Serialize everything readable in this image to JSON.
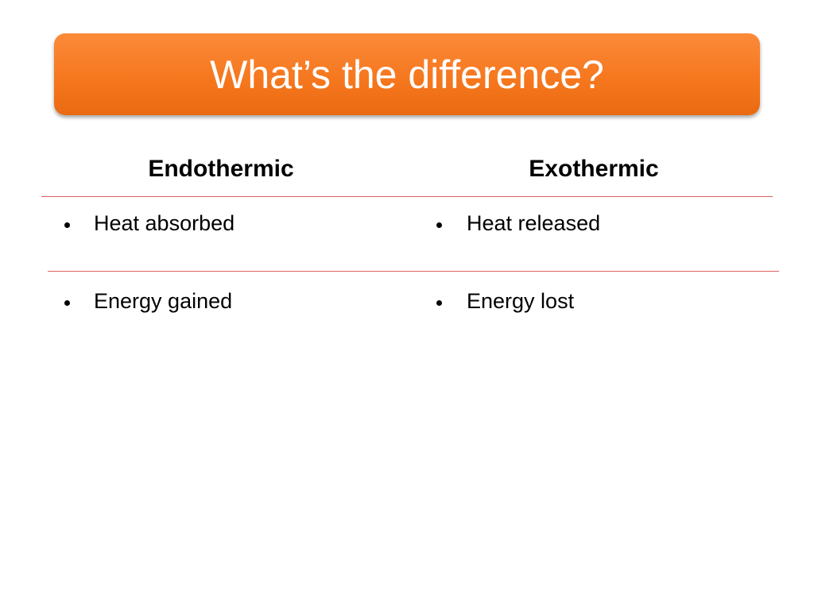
{
  "header": {
    "title": "What’s the difference?"
  },
  "table": {
    "columns": [
      "Endothermic",
      "Exothermic"
    ],
    "rows": [
      [
        "Heat absorbed",
        "Heat released"
      ],
      [
        "Energy gained",
        "Energy lost"
      ]
    ]
  }
}
